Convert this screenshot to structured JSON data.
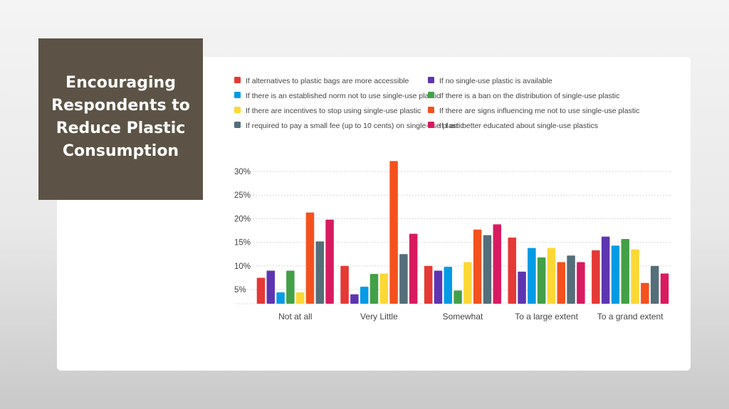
{
  "slide": {
    "title": "Encouraging\nRespondents to\nReduce  Plastic\nConsumption"
  },
  "colors": {
    "card": "#ffffff",
    "title_box": "#5c5346",
    "grid": "#d9d9d9",
    "text": "#444444"
  },
  "chart_data": {
    "type": "bar",
    "categories": [
      "Not at all",
      "Very Little",
      "Somewhat",
      "To a large extent",
      "To a grand extent"
    ],
    "ylim": [
      2,
      33
    ],
    "yticks": [
      5,
      10,
      15,
      20,
      25,
      30
    ],
    "ytick_labels": [
      "5%",
      "10%",
      "15%",
      "20%",
      "25%",
      "30%"
    ],
    "grid": true,
    "legend_position": "top",
    "series": [
      {
        "name": "If alternatives to plastic bags are more accessible",
        "color": "#e53935",
        "values": [
          7.5,
          10,
          10,
          16,
          13.3
        ]
      },
      {
        "name": "If no single-use plastic is available",
        "color": "#5e35b1",
        "values": [
          9,
          4,
          9,
          8.8,
          16.2
        ]
      },
      {
        "name": "If there is an established norm not to use single-use plastic",
        "color": "#039be5",
        "values": [
          4.4,
          5.6,
          9.8,
          13.8,
          14.3
        ]
      },
      {
        "name": "If there is a ban on the distribution of single-use plastic",
        "color": "#43a047",
        "values": [
          9,
          8.3,
          4.8,
          11.8,
          15.7
        ]
      },
      {
        "name": "If there are incentives to stop using single-use plastic",
        "color": "#fdd835",
        "values": [
          4.4,
          8.4,
          10.8,
          13.8,
          13.5
        ]
      },
      {
        "name": "If there are signs influencing me not to use single-use plastic",
        "color": "#f4511e",
        "values": [
          21.3,
          32.2,
          17.7,
          10.8,
          6.4
        ]
      },
      {
        "name": "If required to pay a small fee (up to 10 cents) on single-use plastic",
        "color": "#546e7a",
        "values": [
          15.2,
          12.5,
          16.5,
          12.2,
          10
        ]
      },
      {
        "name": "If I am better educated about single-use plastics",
        "color": "#d81b60",
        "values": [
          19.8,
          16.8,
          18.8,
          10.8,
          8.4
        ]
      }
    ]
  }
}
